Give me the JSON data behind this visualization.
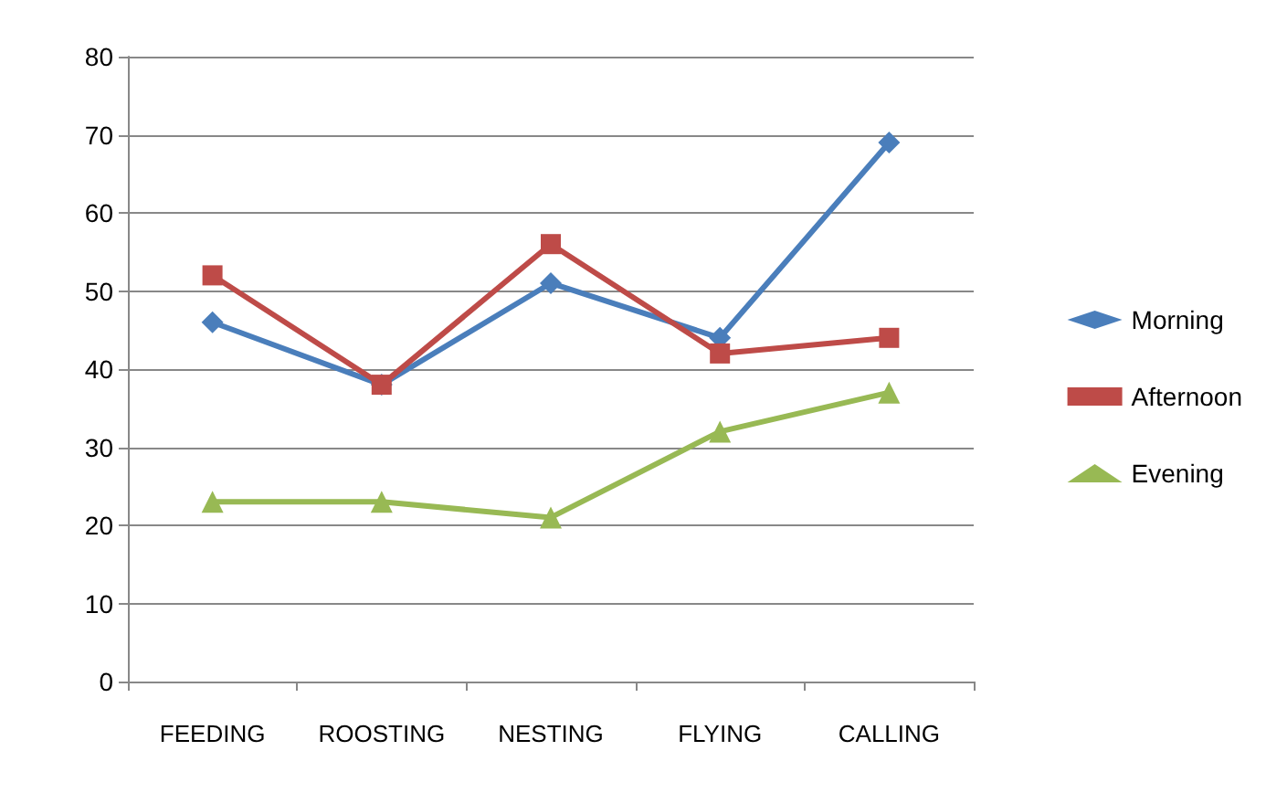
{
  "chart_data": {
    "type": "line",
    "categories": [
      "FEEDING",
      "ROOSTING",
      "NESTING",
      "FLYING",
      "CALLING"
    ],
    "series": [
      {
        "name": "Morning",
        "color": "#4a7ebb",
        "marker": "diamond",
        "values": [
          46,
          38,
          51,
          44,
          69
        ]
      },
      {
        "name": "Afternoon",
        "color": "#be4b48",
        "marker": "square",
        "values": [
          52,
          38,
          56,
          42,
          44
        ]
      },
      {
        "name": "Evening",
        "color": "#98b954",
        "marker": "triangle",
        "values": [
          23,
          23,
          21,
          32,
          37
        ]
      }
    ],
    "ylim": [
      0,
      80
    ],
    "yticks": [
      0,
      10,
      20,
      30,
      40,
      50,
      60,
      70,
      80
    ],
    "grid": "y",
    "legend": "right",
    "line_style": "solid"
  }
}
